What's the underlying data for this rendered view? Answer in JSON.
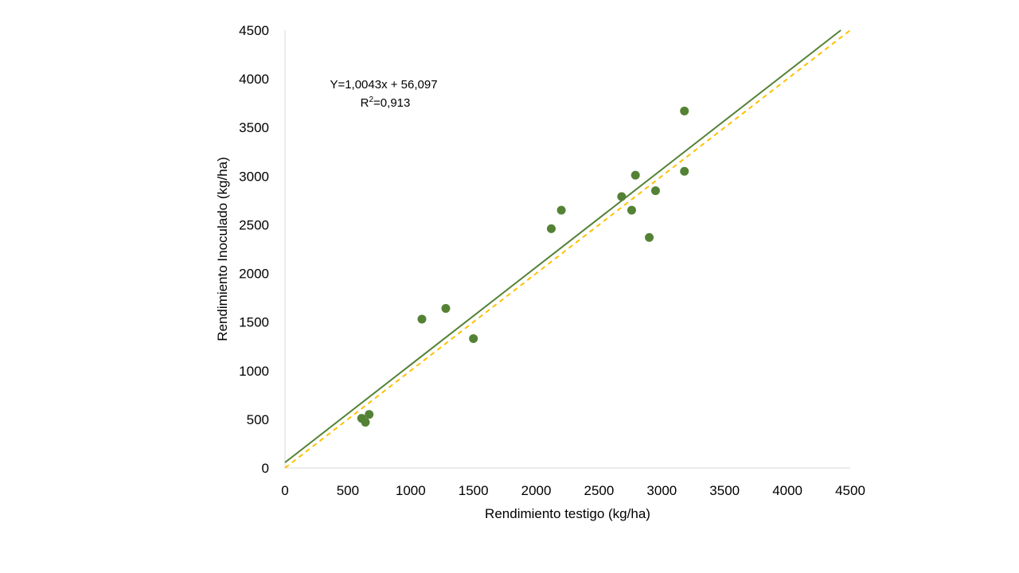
{
  "chart_data": {
    "type": "scatter",
    "xlabel": "Rendimiento testigo (kg/ha)",
    "ylabel": "Rendimiento Inoculado (kg/ha)",
    "xlim": [
      0,
      4500
    ],
    "ylim": [
      0,
      4500
    ],
    "xticks": [
      "0",
      "500",
      "1000",
      "1500",
      "2000",
      "2500",
      "3000",
      "3500",
      "4000",
      "4500"
    ],
    "yticks": [
      "0",
      "500",
      "1000",
      "1500",
      "2000",
      "2500",
      "3000",
      "3500",
      "4000",
      "4500"
    ],
    "grid": false,
    "points": [
      {
        "x": 610,
        "y": 510
      },
      {
        "x": 640,
        "y": 470
      },
      {
        "x": 670,
        "y": 550
      },
      {
        "x": 1090,
        "y": 1530
      },
      {
        "x": 1280,
        "y": 1640
      },
      {
        "x": 1500,
        "y": 1330
      },
      {
        "x": 2120,
        "y": 2460
      },
      {
        "x": 2200,
        "y": 2650
      },
      {
        "x": 2680,
        "y": 2790
      },
      {
        "x": 2760,
        "y": 2650
      },
      {
        "x": 2790,
        "y": 3010
      },
      {
        "x": 2900,
        "y": 2370
      },
      {
        "x": 2950,
        "y": 2850
      },
      {
        "x": 3180,
        "y": 3050
      },
      {
        "x": 3180,
        "y": 3670
      }
    ],
    "regression_line": {
      "slope": 1.0043,
      "intercept": 56.097,
      "color": "#548235",
      "style": "solid"
    },
    "reference_line": {
      "slope": 1,
      "intercept": 0,
      "color": "#ffc000",
      "style": "dashed"
    },
    "annotation": {
      "equation": "Y=1,0043x + 56,097",
      "r2_prefix": "R",
      "r2_sup": "2",
      "r2_value": "=0,913"
    },
    "colors": {
      "points": "#548235",
      "regression": "#548235",
      "reference": "#ffc000",
      "axis": "#d9d9d9"
    }
  }
}
